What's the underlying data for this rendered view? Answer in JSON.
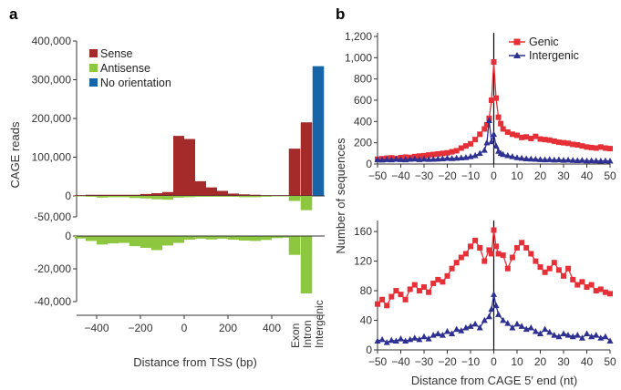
{
  "colors": {
    "sense": "#a52a2a",
    "antisense": "#8dc63f",
    "no_orientation": "#1565a8",
    "genic": "#e53038",
    "intergenic": "#2e3192",
    "axis": "#333333"
  },
  "chart_data": [
    {
      "id": "a",
      "panel_label": "a",
      "type": "bar",
      "xlabel": "Distance from TSS (bp)",
      "ylabel": "CAGE reads",
      "bin_width": 50,
      "xlim": [
        -475,
        475
      ],
      "x_ticks": [
        "-400",
        "-200",
        "0",
        "200",
        "400"
      ],
      "x_tick_values": [
        -400,
        -200,
        0,
        200,
        400
      ],
      "category_labels": [
        "Exon",
        "Intron",
        "Intergenic"
      ],
      "legend": [
        {
          "name": "Sense",
          "color_key": "sense"
        },
        {
          "name": "Antisense",
          "color_key": "antisense"
        },
        {
          "name": "No orientation",
          "color_key": "no_orientation"
        }
      ],
      "top": {
        "ylim": [
          0,
          400000
        ],
        "y_ticks": [
          "0",
          "100,000",
          "200,000",
          "300,000",
          "400,000"
        ],
        "y_tick_values": [
          0,
          100000,
          200000,
          300000,
          400000
        ],
        "x": [
          -475,
          -425,
          -375,
          -325,
          -275,
          -225,
          -175,
          -125,
          -75,
          -25,
          25,
          75,
          125,
          175,
          225,
          275,
          325,
          375,
          425,
          475
        ],
        "sense": [
          2000,
          3000,
          3000,
          3000,
          3000,
          3000,
          5000,
          7000,
          10000,
          155000,
          147000,
          38000,
          22000,
          13000,
          6000,
          4000,
          3000,
          2000,
          2000,
          2000
        ],
        "categories": {
          "Exon": {
            "sense": 122000
          },
          "Intron": {
            "sense": 190000
          },
          "Intergenic": {
            "no_orientation": 335000
          }
        }
      },
      "top_neg": {
        "ylim": [
          -50000,
          0
        ],
        "y_ticks": [
          "-50,000"
        ],
        "y_tick_values": [
          -50000
        ],
        "x": [
          -475,
          -425,
          -375,
          -325,
          -275,
          -225,
          -175,
          -125,
          -75,
          -25,
          25,
          75,
          125,
          175,
          225,
          275,
          325,
          375,
          425,
          475
        ],
        "antisense": [
          -1000,
          -2000,
          -4000,
          -3000,
          -3000,
          -5000,
          -6000,
          -8000,
          -9000,
          -4000,
          -3000,
          -2000,
          -2000,
          -2000,
          -2000,
          -3000,
          -3000,
          -2000,
          -1000,
          -1000
        ],
        "categories": {
          "Exon": {
            "antisense": -12000
          },
          "Intron": {
            "antisense": -34000
          }
        }
      },
      "bottom": {
        "ylim": [
          -40000,
          0
        ],
        "y_ticks": [
          "0",
          "-20,000",
          "-40,000"
        ],
        "y_tick_values": [
          0,
          -20000,
          -40000
        ],
        "x": [
          -475,
          -425,
          -375,
          -325,
          -275,
          -225,
          -175,
          -125,
          -75,
          -25,
          25,
          75,
          125,
          175,
          225,
          275,
          325,
          375,
          425,
          475
        ],
        "antisense": [
          -1500,
          -3000,
          -5200,
          -4500,
          -4200,
          -6200,
          -7200,
          -8600,
          -5800,
          -4200,
          -2200,
          -1600,
          -2100,
          -1600,
          -2200,
          -2800,
          -3000,
          -2400,
          -1300,
          -1000
        ],
        "categories": {
          "Exon": {
            "antisense": -11500
          },
          "Intron": {
            "antisense": -35000
          }
        }
      }
    },
    {
      "id": "b-top",
      "panel_label": "b",
      "type": "line",
      "xlim": [
        -50,
        50
      ],
      "ylim": [
        0,
        1200
      ],
      "x_ticks": [
        "-50",
        "-40",
        "-30",
        "-20",
        "-10",
        "0",
        "10",
        "20",
        "30",
        "40",
        "50"
      ],
      "x_tick_values": [
        -50,
        -40,
        -30,
        -20,
        -10,
        0,
        10,
        20,
        30,
        40,
        50
      ],
      "y_ticks": [
        "0",
        "200",
        "400",
        "600",
        "800",
        "1,000",
        "1,200"
      ],
      "y_tick_values": [
        0,
        200,
        400,
        600,
        800,
        1000,
        1200
      ],
      "ylabel": "Number of sequences",
      "vline_x": 0,
      "legend": [
        {
          "name": "Genic",
          "color_key": "genic",
          "marker": "square"
        },
        {
          "name": "Intergenic",
          "color_key": "intergenic",
          "marker": "triangle"
        }
      ],
      "series": [
        {
          "name": "Genic",
          "marker": "square",
          "color_key": "genic",
          "x": [
            -50,
            -48,
            -46,
            -44,
            -42,
            -40,
            -38,
            -36,
            -34,
            -32,
            -30,
            -28,
            -26,
            -24,
            -22,
            -20,
            -18,
            -16,
            -14,
            -12,
            -10,
            -8,
            -6,
            -4,
            -3,
            -2,
            -1,
            0,
            1,
            2,
            3,
            4,
            6,
            8,
            10,
            12,
            14,
            16,
            18,
            20,
            22,
            24,
            26,
            28,
            30,
            32,
            34,
            36,
            38,
            40,
            42,
            44,
            46,
            48,
            50
          ],
          "y": [
            45,
            50,
            55,
            58,
            52,
            60,
            65,
            62,
            70,
            75,
            78,
            85,
            90,
            95,
            100,
            105,
            115,
            125,
            150,
            170,
            190,
            230,
            280,
            330,
            370,
            430,
            600,
            960,
            620,
            440,
            380,
            330,
            300,
            280,
            270,
            250,
            255,
            240,
            260,
            235,
            230,
            225,
            215,
            205,
            200,
            195,
            185,
            180,
            170,
            160,
            155,
            150,
            160,
            150,
            145
          ]
        },
        {
          "name": "Intergenic",
          "marker": "triangle",
          "color_key": "intergenic",
          "x": [
            -50,
            -48,
            -46,
            -44,
            -42,
            -40,
            -38,
            -36,
            -34,
            -32,
            -30,
            -28,
            -26,
            -24,
            -22,
            -20,
            -18,
            -16,
            -14,
            -12,
            -10,
            -8,
            -6,
            -4,
            -3,
            -2,
            -1,
            0,
            1,
            2,
            3,
            4,
            6,
            8,
            10,
            12,
            14,
            16,
            18,
            20,
            22,
            24,
            26,
            28,
            30,
            32,
            34,
            36,
            38,
            40,
            42,
            44,
            46,
            48,
            50
          ],
          "y": [
            40,
            38,
            42,
            40,
            45,
            42,
            40,
            45,
            48,
            42,
            46,
            44,
            45,
            48,
            50,
            55,
            52,
            55,
            58,
            62,
            70,
            80,
            100,
            130,
            200,
            410,
            210,
            280,
            170,
            120,
            100,
            90,
            80,
            70,
            60,
            55,
            50,
            48,
            45,
            42,
            40,
            42,
            38,
            40,
            36,
            38,
            35,
            33,
            35,
            30,
            32,
            30,
            28,
            30,
            28
          ]
        }
      ]
    },
    {
      "id": "b-bottom",
      "type": "line",
      "xlim": [
        -50,
        50
      ],
      "ylim": [
        0,
        170
      ],
      "x_ticks": [
        "-50",
        "-40",
        "-30",
        "-20",
        "-10",
        "0",
        "10",
        "20",
        "30",
        "40",
        "50"
      ],
      "x_tick_values": [
        -50,
        -40,
        -30,
        -20,
        -10,
        0,
        10,
        20,
        30,
        40,
        50
      ],
      "y_ticks": [
        "0",
        "40",
        "80",
        "120",
        "160"
      ],
      "y_tick_values": [
        0,
        40,
        80,
        120,
        160
      ],
      "xlabel": "Distance from CAGE 5′ end (nt)",
      "vline_x": 0,
      "series": [
        {
          "name": "Genic",
          "marker": "square",
          "color_key": "genic",
          "x": [
            -50,
            -48,
            -46,
            -44,
            -42,
            -40,
            -38,
            -36,
            -34,
            -32,
            -30,
            -28,
            -26,
            -24,
            -22,
            -20,
            -18,
            -16,
            -14,
            -12,
            -10,
            -8,
            -6,
            -4,
            -2,
            -1,
            0,
            1,
            2,
            4,
            6,
            8,
            10,
            12,
            14,
            16,
            18,
            20,
            22,
            24,
            26,
            28,
            30,
            32,
            34,
            36,
            38,
            40,
            42,
            44,
            46,
            48,
            50
          ],
          "y": [
            62,
            68,
            60,
            72,
            80,
            75,
            68,
            82,
            88,
            80,
            85,
            78,
            90,
            95,
            92,
            100,
            110,
            118,
            125,
            130,
            140,
            148,
            138,
            120,
            135,
            130,
            162,
            140,
            130,
            128,
            110,
            125,
            138,
            145,
            138,
            130,
            120,
            112,
            105,
            110,
            118,
            108,
            100,
            110,
            95,
            88,
            92,
            85,
            88,
            80,
            82,
            78,
            76
          ]
        },
        {
          "name": "Intergenic",
          "marker": "triangle",
          "color_key": "intergenic",
          "x": [
            -50,
            -48,
            -46,
            -44,
            -42,
            -40,
            -38,
            -36,
            -34,
            -32,
            -30,
            -28,
            -26,
            -24,
            -22,
            -20,
            -18,
            -16,
            -14,
            -12,
            -10,
            -8,
            -6,
            -4,
            -2,
            -1,
            0,
            1,
            2,
            4,
            6,
            8,
            10,
            12,
            14,
            16,
            18,
            20,
            22,
            24,
            26,
            28,
            30,
            32,
            34,
            36,
            38,
            40,
            42,
            44,
            46,
            48,
            50
          ],
          "y": [
            12,
            14,
            10,
            13,
            12,
            15,
            12,
            14,
            16,
            14,
            18,
            15,
            20,
            22,
            20,
            25,
            22,
            28,
            26,
            30,
            32,
            35,
            30,
            40,
            45,
            55,
            75,
            60,
            48,
            40,
            36,
            30,
            35,
            32,
            28,
            30,
            25,
            22,
            28,
            24,
            20,
            18,
            22,
            20,
            18,
            20,
            16,
            22,
            18,
            20,
            16,
            18,
            12
          ]
        }
      ]
    }
  ]
}
